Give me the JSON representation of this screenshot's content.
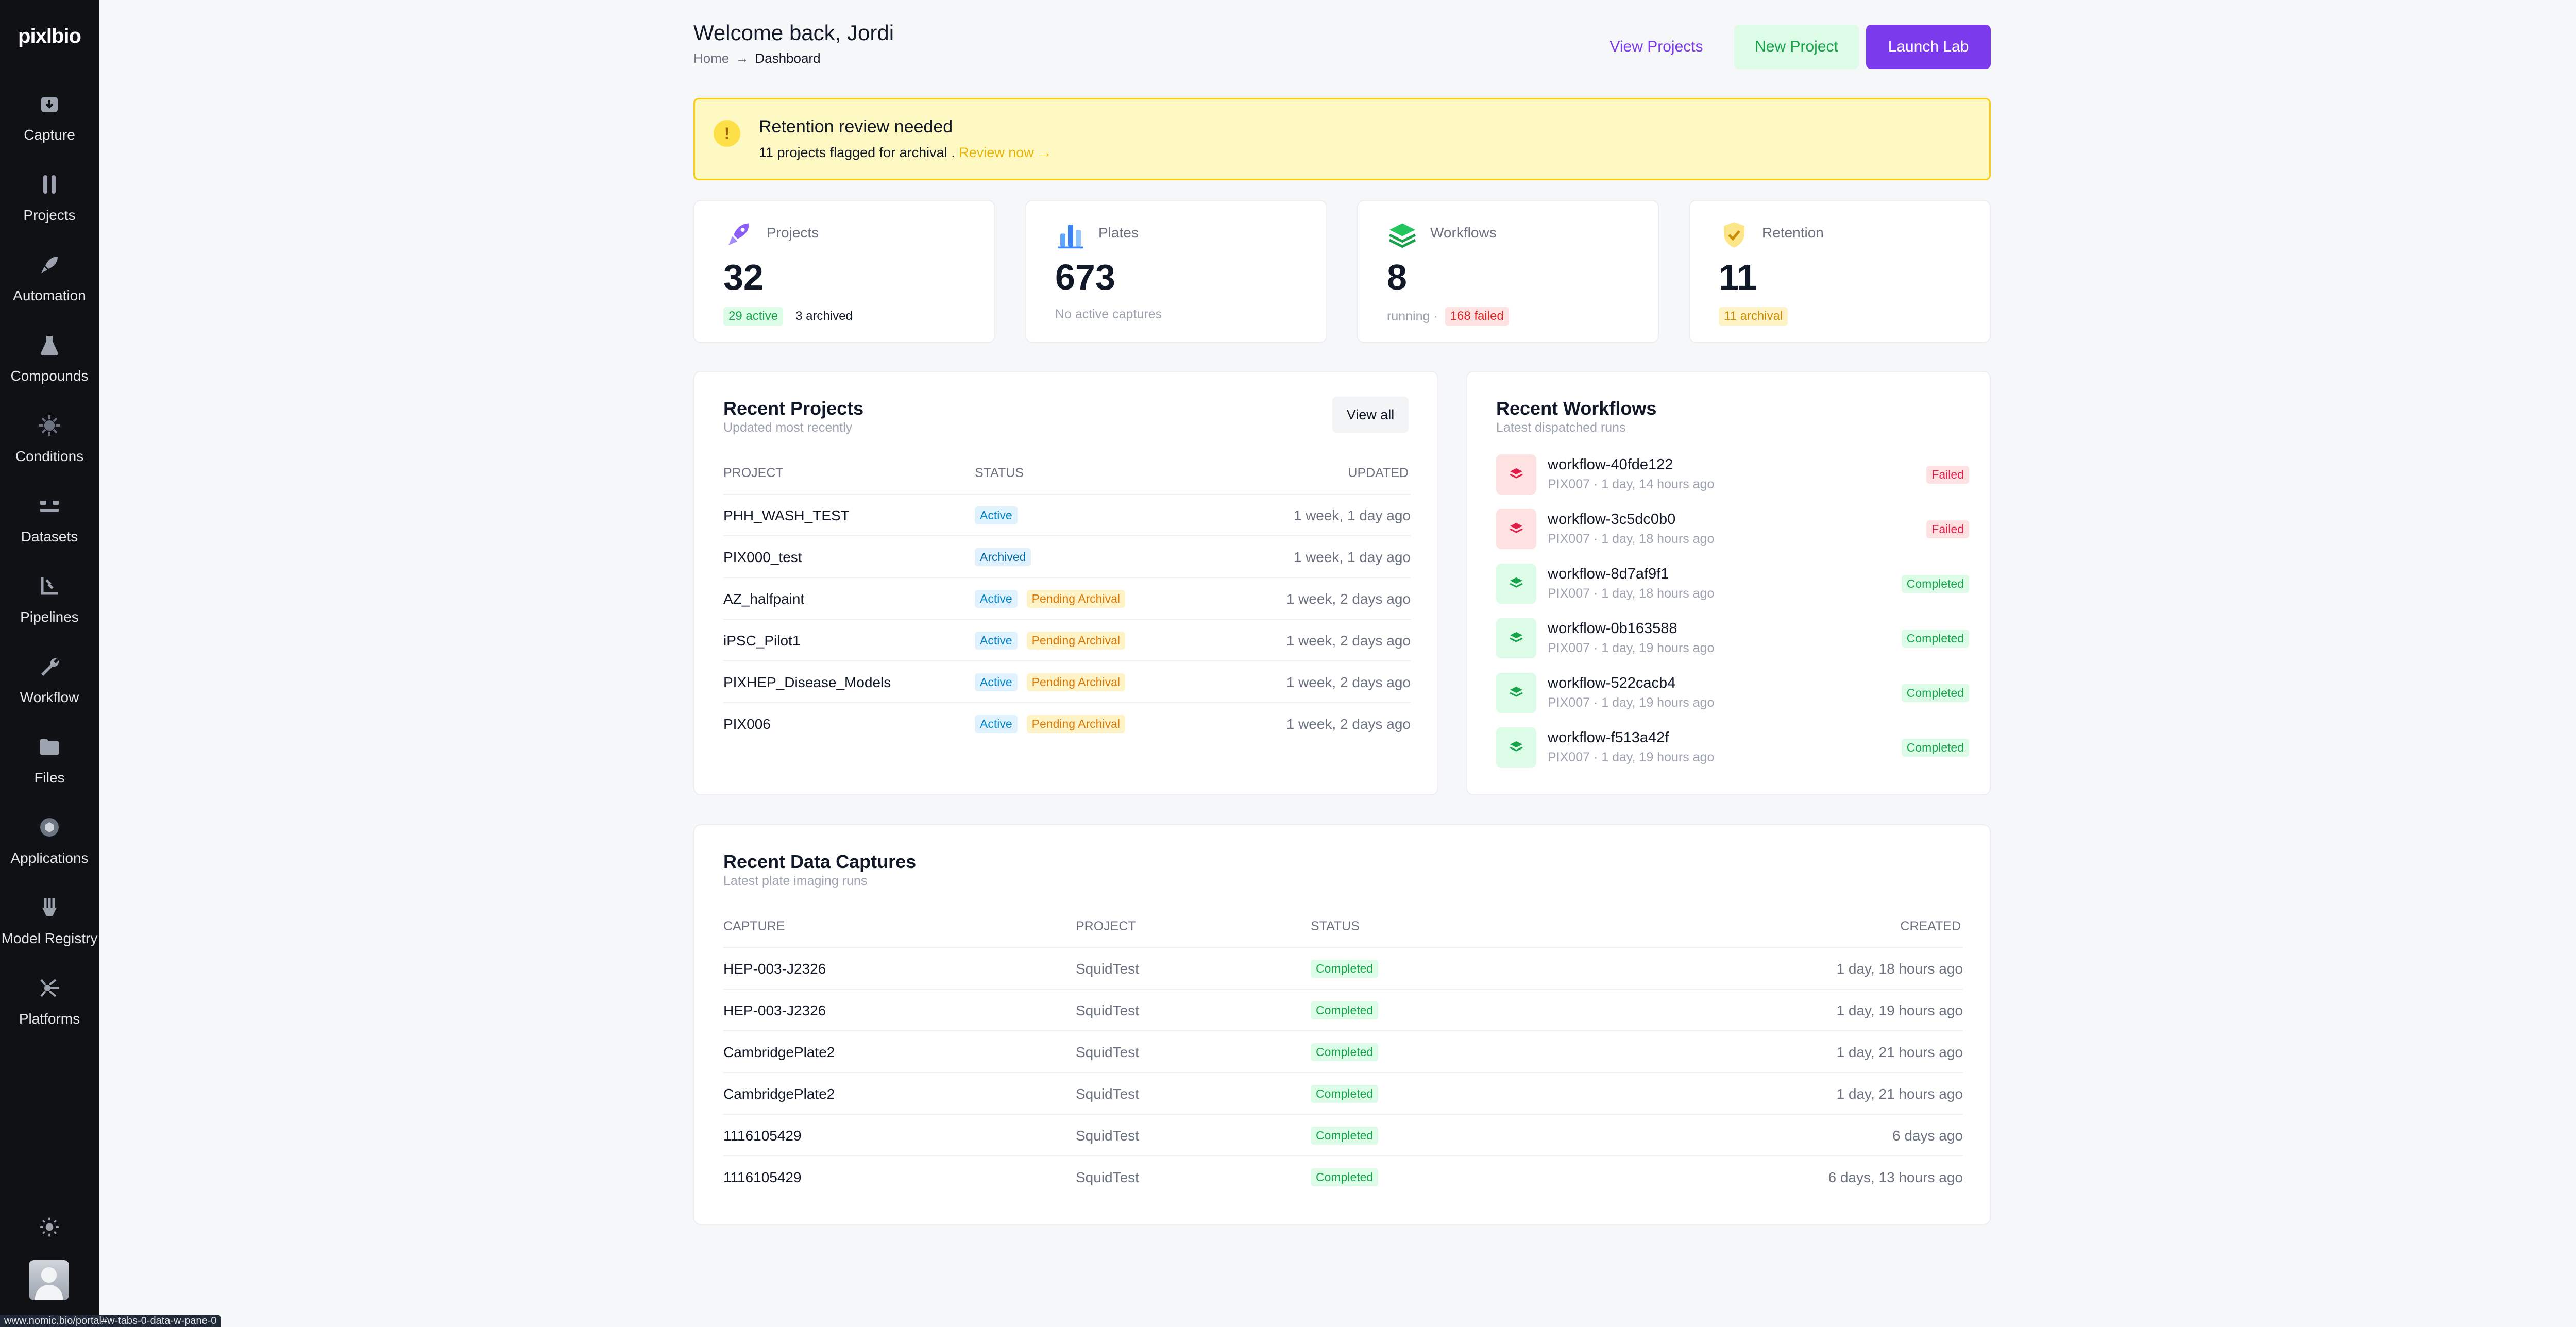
{
  "app": {
    "logo": "pixlbio"
  },
  "sidebar": {
    "items": [
      {
        "label": "Capture",
        "icon": "capture-icon"
      },
      {
        "label": "Projects",
        "icon": "projects-icon"
      },
      {
        "label": "Automation",
        "icon": "automation-icon"
      },
      {
        "label": "Compounds",
        "icon": "compounds-icon"
      },
      {
        "label": "Conditions",
        "icon": "conditions-icon"
      },
      {
        "label": "Datasets",
        "icon": "datasets-icon"
      },
      {
        "label": "Pipelines",
        "icon": "pipelines-icon"
      },
      {
        "label": "Workflow",
        "icon": "workflow-icon"
      },
      {
        "label": "Files",
        "icon": "files-icon"
      },
      {
        "label": "Applications",
        "icon": "applications-icon"
      },
      {
        "label": "Model Registry",
        "icon": "model-registry-icon"
      },
      {
        "label": "Platforms",
        "icon": "platforms-icon"
      }
    ]
  },
  "status_bar": {
    "url": "www.nomic.bio/portal#w-tabs-0-data-w-pane-0"
  },
  "header": {
    "title": "Welcome back, Jordi",
    "breadcrumb": [
      "Home",
      "Dashboard"
    ],
    "breadcrumb_sep": "→",
    "buttons": {
      "view": "View Projects",
      "new": "New Project",
      "launch": "Launch Lab"
    }
  },
  "alert": {
    "title": "Retention review needed",
    "text": "11 projects flagged for archival .",
    "link": "Review now →",
    "icon": "!"
  },
  "stats": [
    {
      "label": "Projects",
      "value": "32",
      "sub": [
        "29 active",
        "3 archived"
      ]
    },
    {
      "label": "Plates",
      "value": "673",
      "sub": [
        "No active captures"
      ]
    },
    {
      "label": "Workflows",
      "value": "8",
      "sub": [
        "running ·",
        "168 failed"
      ]
    },
    {
      "label": "Retention",
      "value": "11",
      "sub": [
        "11 archival"
      ]
    }
  ],
  "recent_projects": {
    "title": "Recent Projects",
    "subtitle": "Updated most recently",
    "view_all": "View all",
    "columns": [
      "Project",
      "Status",
      "Updated"
    ],
    "rows": [
      {
        "name": "PHH_WASH_TEST",
        "badges": [
          "Active"
        ],
        "updated": "1 week, 1 day ago"
      },
      {
        "name": "PIX000_test",
        "badges": [
          "Archived"
        ],
        "updated": "1 week, 1 day ago"
      },
      {
        "name": "AZ_halfpaint",
        "badges": [
          "Active",
          "Pending Archival"
        ],
        "updated": "1 week, 2 days ago"
      },
      {
        "name": "iPSC_Pilot1",
        "badges": [
          "Active",
          "Pending Archival"
        ],
        "updated": "1 week, 2 days ago"
      },
      {
        "name": "PIXHEP_Disease_Models",
        "badges": [
          "Active",
          "Pending Archival"
        ],
        "updated": "1 week, 2 days ago"
      },
      {
        "name": "PIX006",
        "badges": [
          "Active",
          "Pending Archival"
        ],
        "updated": "1 week, 2 days ago"
      }
    ]
  },
  "recent_workflows": {
    "title": "Recent Workflows",
    "subtitle": "Latest dispatched runs",
    "items": [
      {
        "name": "workflow-40fde122",
        "meta": "PIX007 · 1 day, 14 hours ago",
        "status": "Failed"
      },
      {
        "name": "workflow-3c5dc0b0",
        "meta": "PIX007 · 1 day, 18 hours ago",
        "status": "Failed"
      },
      {
        "name": "workflow-8d7af9f1",
        "meta": "PIX007 · 1 day, 18 hours ago",
        "status": "Completed"
      },
      {
        "name": "workflow-0b163588",
        "meta": "PIX007 · 1 day, 19 hours ago",
        "status": "Completed"
      },
      {
        "name": "workflow-522cacb4",
        "meta": "PIX007 · 1 day, 19 hours ago",
        "status": "Completed"
      },
      {
        "name": "workflow-f513a42f",
        "meta": "PIX007 · 1 day, 19 hours ago",
        "status": "Completed"
      }
    ]
  },
  "recent_captures": {
    "title": "Recent Data Captures",
    "subtitle": "Latest plate imaging runs",
    "columns": [
      "Capture",
      "Project",
      "Status",
      "Created"
    ],
    "rows": [
      {
        "capture": "HEP-003-J2326",
        "project": "SquidTest",
        "status": "Completed",
        "created": "1 day, 18 hours ago"
      },
      {
        "capture": "HEP-003-J2326",
        "project": "SquidTest",
        "status": "Completed",
        "created": "1 day, 19 hours ago"
      },
      {
        "capture": "CambridgePlate2",
        "project": "SquidTest",
        "status": "Completed",
        "created": "1 day, 21 hours ago"
      },
      {
        "capture": "CambridgePlate2",
        "project": "SquidTest",
        "status": "Completed",
        "created": "1 day, 21 hours ago"
      },
      {
        "capture": "1116105429",
        "project": "SquidTest",
        "status": "Completed",
        "created": "6 days ago"
      },
      {
        "capture": "1116105429",
        "project": "SquidTest",
        "status": "Completed",
        "created": "6 days, 13 hours ago"
      }
    ]
  }
}
